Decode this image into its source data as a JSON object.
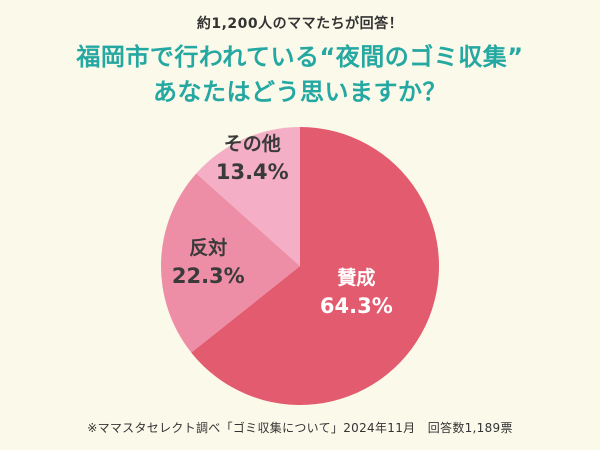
{
  "page": {
    "background": "#FBF9EA",
    "top_note": "約1,200人のママたちが回答！",
    "title_line1": "福岡市で行われている“夜間のゴミ収集”",
    "title_line2": "あなたはどう思いますか？",
    "title_color": "#25A8A2",
    "footnote": "※ママスタセレクト調べ「ゴミ収集について」2024年11月　回答数1,189票"
  },
  "chart_data": {
    "type": "pie",
    "title": "福岡市で行われている“夜間のゴミ収集” あなたはどう思いますか？",
    "categories": [
      "賛成",
      "反対",
      "その他"
    ],
    "values": [
      64.3,
      22.3,
      13.4
    ],
    "unit": "%",
    "colors": [
      "#E25B6F",
      "#EE8EA6",
      "#F4AFC6"
    ],
    "label_colors": [
      "#FFFFFF",
      "#3A3A3A",
      "#3A3A3A"
    ],
    "start_angle_deg": 0,
    "direction": "clockwise",
    "legend_position": "none",
    "labels_on_slices": true
  }
}
